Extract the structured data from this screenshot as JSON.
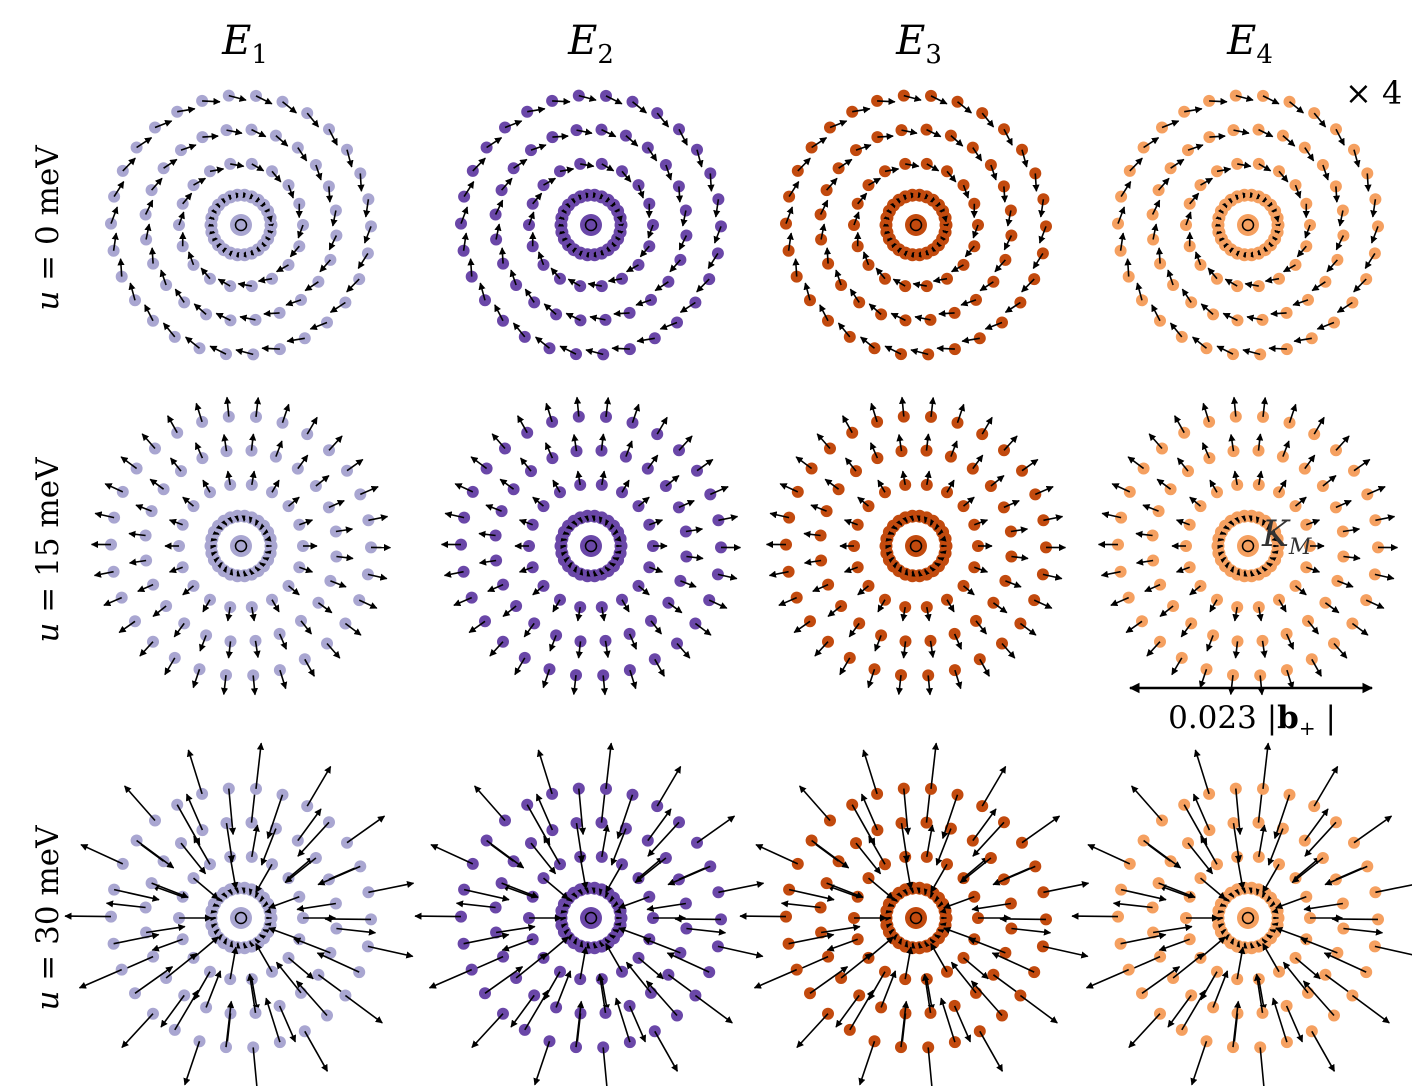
{
  "columns": [
    {
      "symbol": "E",
      "sub": "1"
    },
    {
      "symbol": "E",
      "sub": "2"
    },
    {
      "symbol": "E",
      "sub": "3"
    },
    {
      "symbol": "E",
      "sub": "4"
    }
  ],
  "rows": [
    {
      "var": "u",
      "eq": " = 0 meV"
    },
    {
      "var": "u",
      "eq": " = 15 meV"
    },
    {
      "var": "u",
      "eq": " = 30 meV"
    }
  ],
  "colors": [
    "#a9a6d1",
    "#6a47a8",
    "#c24a0e",
    "#f5a060"
  ],
  "annotations": {
    "multiplier": "× 4",
    "scale_bar_prefix": "0.023 |",
    "scale_bar_bold": "b",
    "scale_bar_sub": "+",
    "scale_bar_suffix": " |",
    "point_symbol": "K",
    "point_sub": "M"
  },
  "field_patterns": [
    {
      "row": "u = 0 meV",
      "pattern": "tangential-swirl"
    },
    {
      "row": "u = 15 meV",
      "pattern": "radial-inward"
    },
    {
      "row": "u = 30 meV",
      "pattern": "radial-outward-and-inward"
    }
  ]
}
